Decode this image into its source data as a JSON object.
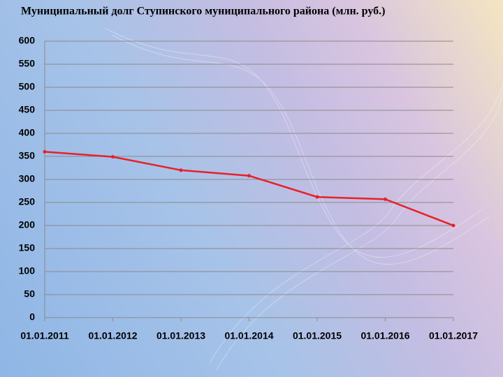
{
  "chart_data": {
    "type": "line",
    "title": "Муниципальный долг Ступинского муниципального района (млн. руб.)",
    "categories": [
      "01.01.2011",
      "01.01.2012",
      "01.01.2013",
      "01.01.2014",
      "01.01.2015",
      "01.01.2016",
      "01.01.2017"
    ],
    "values": [
      360,
      349,
      320,
      308,
      262,
      257,
      200
    ],
    "color": "#e8202a",
    "ylim": [
      0,
      600
    ],
    "yticks": [
      0,
      50,
      100,
      150,
      200,
      250,
      300,
      350,
      400,
      450,
      500,
      550,
      600
    ],
    "grid": true
  }
}
